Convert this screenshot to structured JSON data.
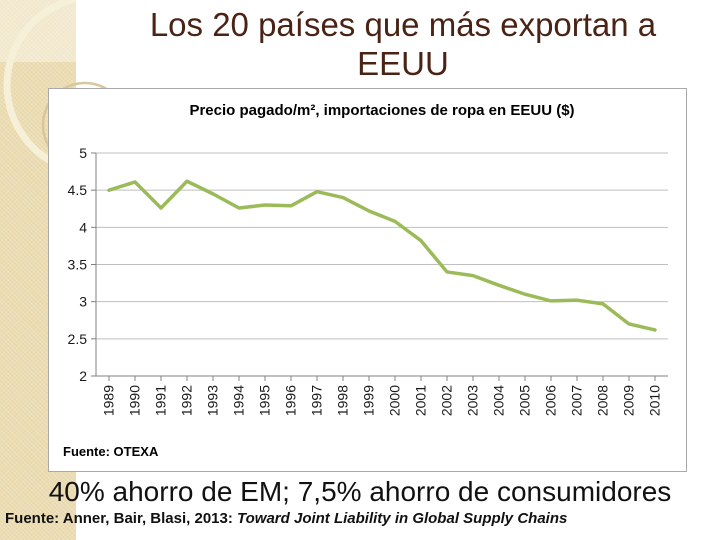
{
  "slide": {
    "title": "Los 20 países que más exportan a EEUU"
  },
  "chart": {
    "title": "Precio pagado/m², importaciones de ropa en EEUU ($)",
    "source": "Fuente: OTEXA"
  },
  "notes": {
    "savings": "40% ahorro de EM; 7,5% ahorro de consumidores",
    "source_prefix": "Fuente: Anner, Bair, Blasi, 2013: ",
    "source_title": "Toward Joint Liability in Global Supply Chains"
  },
  "colors": {
    "line": "#9bbb59",
    "grid": "#bfbfbf",
    "axis": "#808080",
    "tick_label": "#1a1a1a",
    "slide_title_text": "#4a2315",
    "strip": "#e8d8ab"
  },
  "chart_data": {
    "type": "line",
    "title": "Precio pagado/m², importaciones de ropa en EEUU ($)",
    "x": [
      1989,
      1990,
      1991,
      1992,
      1993,
      1994,
      1995,
      1996,
      1997,
      1998,
      1999,
      2000,
      2001,
      2002,
      2003,
      2004,
      2005,
      2006,
      2007,
      2008,
      2009,
      2010
    ],
    "values": [
      4.5,
      4.61,
      4.26,
      4.62,
      4.45,
      4.26,
      4.3,
      4.29,
      4.48,
      4.4,
      4.22,
      4.08,
      3.82,
      3.4,
      3.35,
      3.22,
      3.1,
      3.01,
      3.02,
      2.97,
      2.7,
      2.62
    ],
    "xlabel": "",
    "ylabel": "",
    "ylim": [
      2,
      5
    ],
    "yticks": [
      2,
      2.5,
      3,
      3.5,
      4,
      4.5,
      5
    ],
    "grid": true,
    "legend_position": "none"
  }
}
